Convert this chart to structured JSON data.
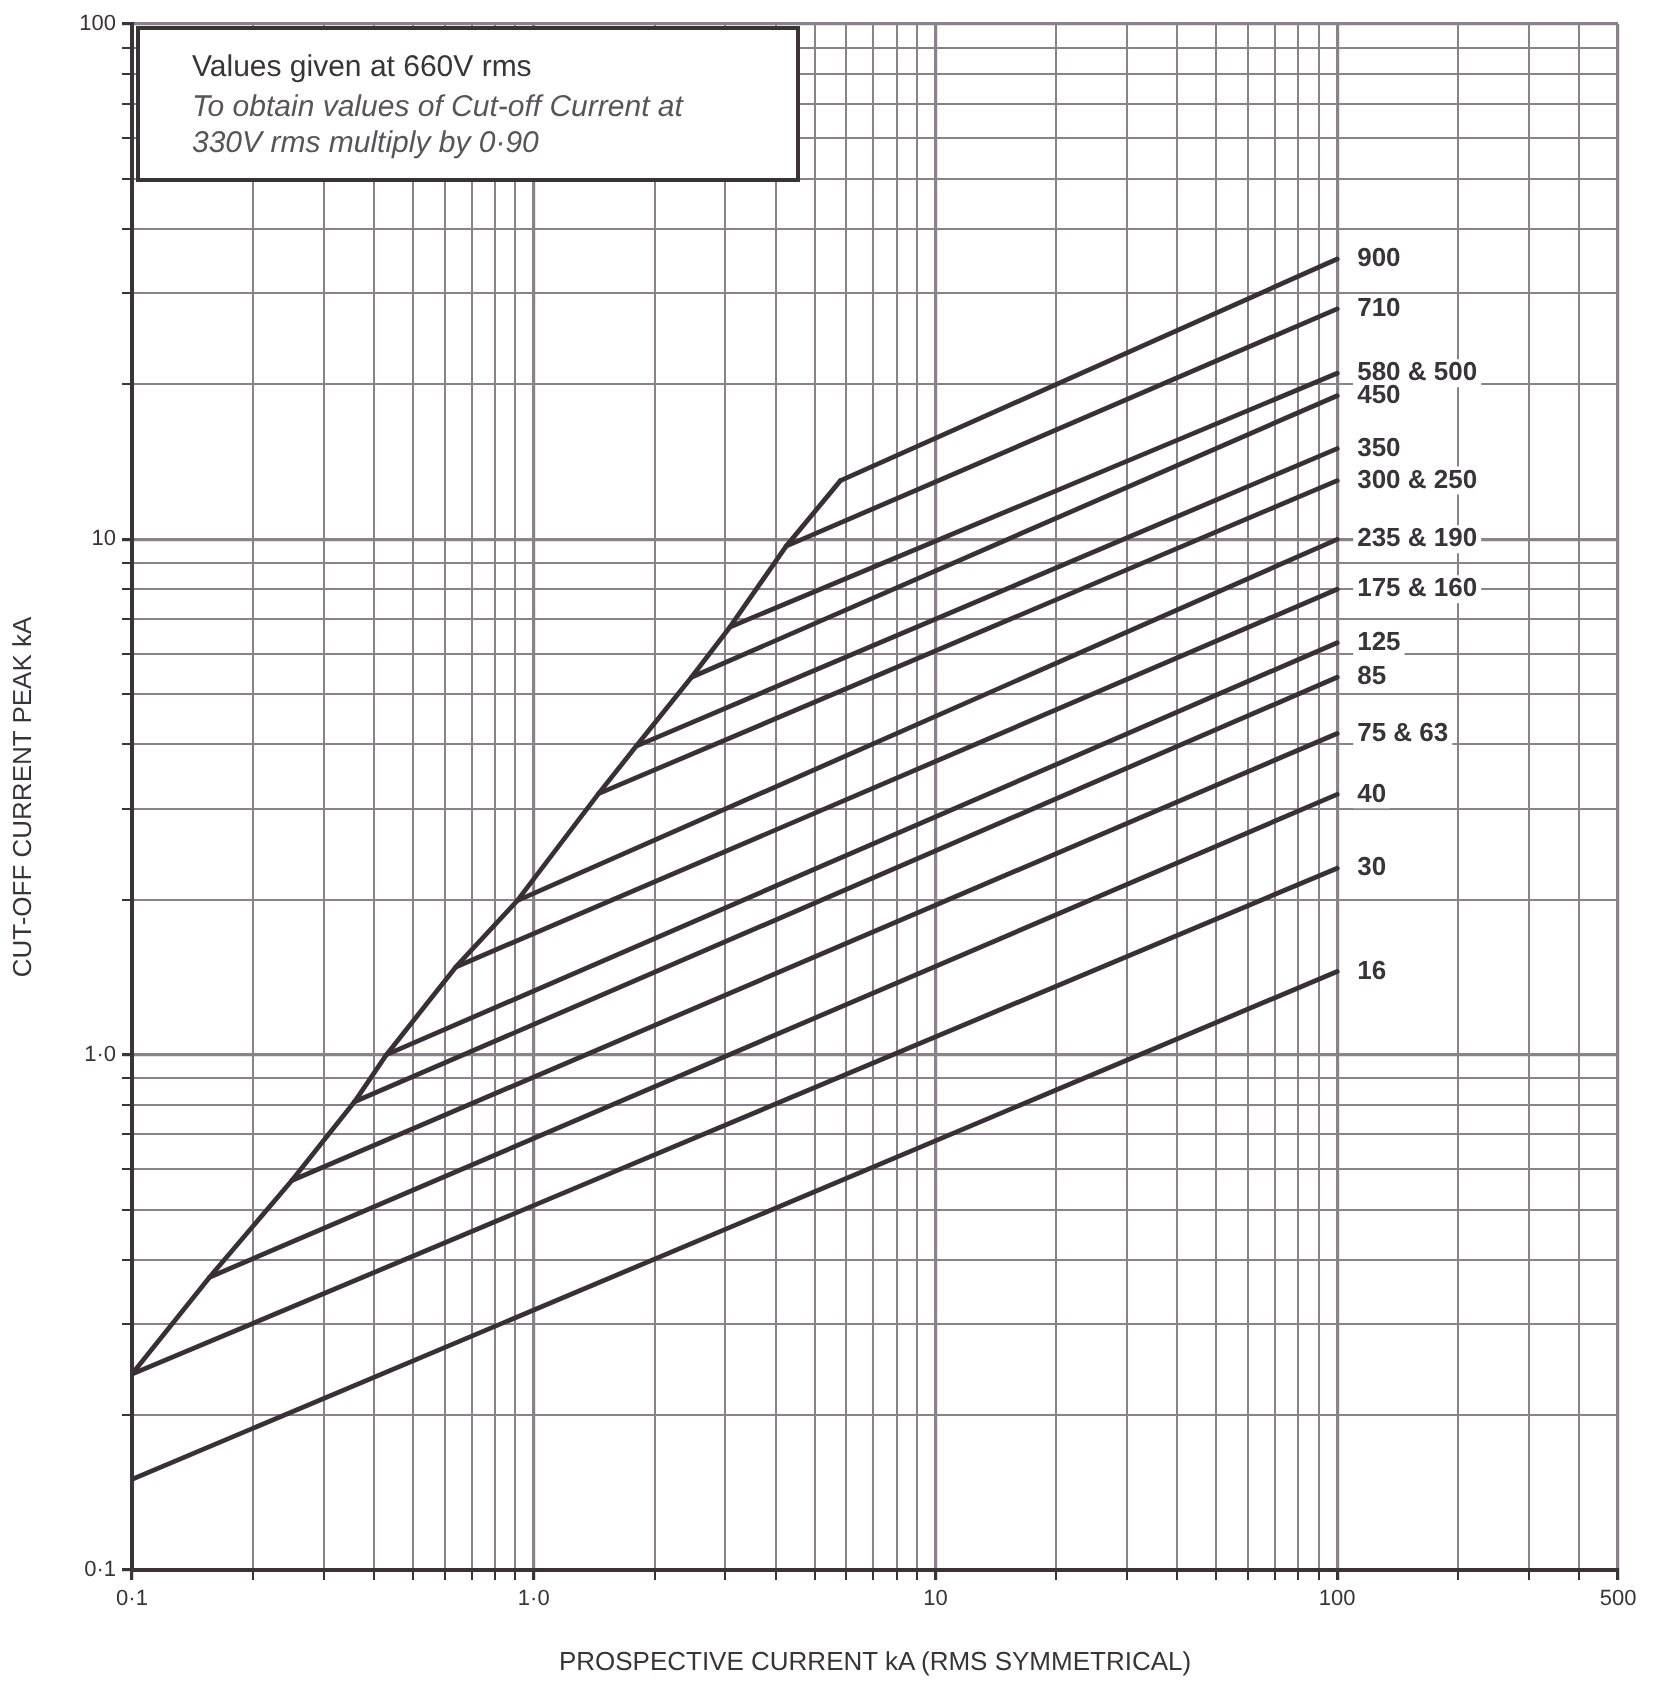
{
  "chart_data": {
    "type": "line",
    "xlabel": "PROSPECTIVE CURRENT kA (RMS SYMMETRICAL)",
    "ylabel": "CUT-OFF CURRENT PEAK kA",
    "annotations": [
      "Values given at 660V rms",
      "To obtain values of Cut-off Current at 330V rms multiply by 0·90"
    ],
    "log": "xy",
    "grid": true,
    "legend": false,
    "xlim": [
      0.1,
      500
    ],
    "ylim": [
      0.1,
      100
    ],
    "xticks": [
      {
        "value": 0.1,
        "label": "0·1"
      },
      {
        "value": 0.2,
        "label": null
      },
      {
        "value": 0.3,
        "label": null
      },
      {
        "value": 0.4,
        "label": null
      },
      {
        "value": 0.5,
        "label": null
      },
      {
        "value": 0.6,
        "label": null
      },
      {
        "value": 0.7,
        "label": null
      },
      {
        "value": 0.8,
        "label": null
      },
      {
        "value": 0.9,
        "label": null
      },
      {
        "value": 1,
        "label": "1·0"
      },
      {
        "value": 2,
        "label": null
      },
      {
        "value": 3,
        "label": null
      },
      {
        "value": 4,
        "label": null
      },
      {
        "value": 5,
        "label": null
      },
      {
        "value": 6,
        "label": null
      },
      {
        "value": 7,
        "label": null
      },
      {
        "value": 8,
        "label": null
      },
      {
        "value": 9,
        "label": null
      },
      10,
      {
        "value": 20,
        "label": null
      },
      {
        "value": 30,
        "label": null
      },
      {
        "value": 40,
        "label": null
      },
      {
        "value": 50,
        "label": null
      },
      {
        "value": 60,
        "label": null
      },
      {
        "value": 70,
        "label": null
      },
      {
        "value": 80,
        "label": null
      },
      {
        "value": 90,
        "label": null
      },
      100,
      {
        "value": 200,
        "label": null
      },
      {
        "value": 300,
        "label": null
      },
      {
        "value": 400,
        "label": null
      },
      500
    ],
    "yticks": [
      {
        "value": 0.1,
        "label": "0·1"
      },
      {
        "value": 0.2,
        "label": null
      },
      {
        "value": 0.3,
        "label": null
      },
      {
        "value": 0.4,
        "label": null
      },
      {
        "value": 0.5,
        "label": null
      },
      {
        "value": 0.6,
        "label": null
      },
      {
        "value": 0.7,
        "label": null
      },
      {
        "value": 0.8,
        "label": null
      },
      {
        "value": 0.9,
        "label": null
      },
      {
        "value": 1,
        "label": "1·0"
      },
      {
        "value": 2,
        "label": null
      },
      {
        "value": 3,
        "label": null
      },
      {
        "value": 4,
        "label": null
      },
      {
        "value": 5,
        "label": null
      },
      {
        "value": 6,
        "label": null
      },
      {
        "value": 7,
        "label": null
      },
      {
        "value": 8,
        "label": null
      },
      {
        "value": 9,
        "label": null
      },
      10,
      {
        "value": 20,
        "label": null
      },
      {
        "value": 30,
        "label": null
      },
      {
        "value": 40,
        "label": null
      },
      {
        "value": 50,
        "label": null
      },
      {
        "value": 60,
        "label": null
      },
      {
        "value": 70,
        "label": null
      },
      {
        "value": 80,
        "label": null
      },
      {
        "value": 90,
        "label": null
      },
      100
    ],
    "series": [
      {
        "color": "#3a2f35",
        "x": [
          0.1,
          0.156,
          0.25,
          0.358,
          0.43,
          0.64,
          0.91,
          1.45,
          1.8,
          2.47,
          3.08,
          4.25,
          5.8
        ],
        "values": [
          0.24,
          0.37,
          0.57,
          0.81,
          1.0,
          1.48,
          1.99,
          3.21,
          3.97,
          5.4,
          6.76,
          9.7,
          13
        ]
      },
      {
        "name": "900",
        "color": "#3a2f35",
        "x": [
          5.8,
          100
        ],
        "values": [
          13,
          35
        ]
      },
      {
        "name": "710",
        "color": "#3a2f35",
        "x": [
          4.25,
          100
        ],
        "values": [
          9.7,
          28
        ]
      },
      {
        "name": "580 & 500",
        "color": "#3a2f35",
        "x": [
          3.08,
          100
        ],
        "values": [
          6.76,
          21
        ]
      },
      {
        "name": "450",
        "color": "#3a2f35",
        "x": [
          2.47,
          100
        ],
        "values": [
          5.4,
          19
        ]
      },
      {
        "name": "350",
        "color": "#3a2f35",
        "x": [
          1.8,
          100
        ],
        "values": [
          3.97,
          15
        ]
      },
      {
        "name": "300 & 250",
        "color": "#3a2f35",
        "x": [
          1.45,
          100
        ],
        "values": [
          3.21,
          13
        ]
      },
      {
        "name": "235 & 190",
        "color": "#3a2f35",
        "x": [
          0.91,
          100
        ],
        "values": [
          1.99,
          10
        ]
      },
      {
        "name": "175 & 160",
        "color": "#3a2f35",
        "x": [
          0.64,
          100
        ],
        "values": [
          1.48,
          8
        ]
      },
      {
        "name": "125",
        "color": "#3a2f35",
        "x": [
          0.43,
          100
        ],
        "values": [
          1.0,
          6.3
        ]
      },
      {
        "name": "85",
        "color": "#3a2f35",
        "x": [
          0.358,
          100
        ],
        "values": [
          0.81,
          5.4
        ]
      },
      {
        "name": "75 & 63",
        "color": "#3a2f35",
        "x": [
          0.25,
          100
        ],
        "values": [
          0.57,
          4.2
        ]
      },
      {
        "name": "40",
        "color": "#3a2f35",
        "x": [
          0.156,
          100
        ],
        "values": [
          0.37,
          3.2
        ]
      },
      {
        "name": "30",
        "color": "#3a2f35",
        "x": [
          0.1,
          100
        ],
        "values": [
          0.24,
          2.3
        ]
      },
      {
        "name": "16",
        "color": "#3a2f35",
        "x": [
          0.1,
          100
        ],
        "values": [
          0.15,
          1.45
        ]
      }
    ]
  }
}
